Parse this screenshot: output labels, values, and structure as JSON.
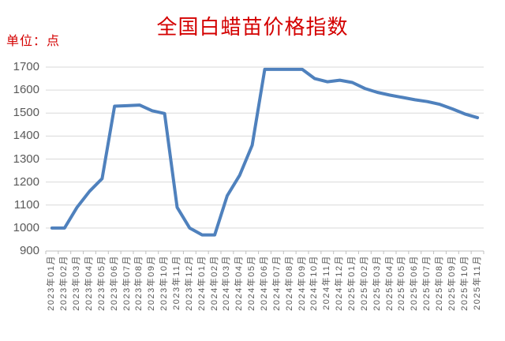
{
  "colors": {
    "title": "#D40000",
    "line": "#4F81BD",
    "grid": "#D9D9D9",
    "axis": "#BFBFBF",
    "tick_text": "#595959"
  },
  "chart_data": {
    "type": "line",
    "title": "全国白蜡苗价格指数",
    "ylabel": "单位：点",
    "xlabel": "",
    "ylim": [
      900,
      1700
    ],
    "ytick_step": 100,
    "yticks": [
      900,
      1000,
      1100,
      1200,
      1300,
      1400,
      1500,
      1600,
      1700
    ],
    "grid": true,
    "legend": false,
    "categories": [
      "2023年01月",
      "2023年02月",
      "2023年03月",
      "2023年04月",
      "2023年05月",
      "2023年06月",
      "2023年07月",
      "2023年08月",
      "2023年09月",
      "2023年10月",
      "2023年11月",
      "2023年12月",
      "2024年01月",
      "2024年02月",
      "2024年03月",
      "2024年04月",
      "2024年05月",
      "2024年06月",
      "2024年07月",
      "2024年08月",
      "2024年09月",
      "2024年10月",
      "2024年11月",
      "2024年12月",
      "2025年01月",
      "2025年02月",
      "2025年03月",
      "2025年04月",
      "2025年05月",
      "2025年06月",
      "2025年07月",
      "2025年08月",
      "2025年09月",
      "2025年10月",
      "2025年11月"
    ],
    "series": [
      {
        "name": "全国白蜡苗价格指数",
        "values": [
          1000,
          1000,
          1090,
          1160,
          1215,
          1530,
          1532,
          1535,
          1510,
          1498,
          1090,
          1000,
          970,
          970,
          1140,
          1230,
          1360,
          1690,
          1690,
          1690,
          1690,
          1650,
          1636,
          1643,
          1633,
          1607,
          1590,
          1578,
          1568,
          1558,
          1550,
          1538,
          1518,
          1496,
          1480
        ]
      }
    ]
  }
}
